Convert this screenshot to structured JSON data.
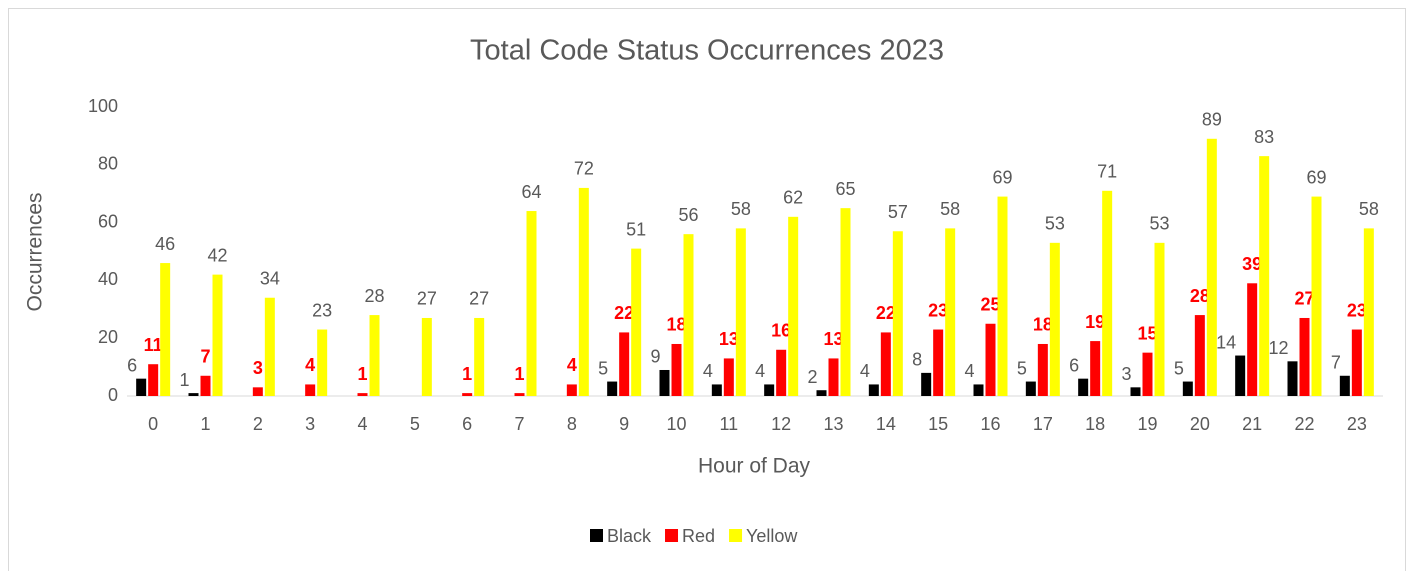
{
  "chart_data": {
    "type": "bar",
    "title": "Total Code Status Occurrences 2023",
    "x_label": "Hour of Day",
    "y_label": "Occurrences",
    "categories": [
      "0",
      "1",
      "2",
      "3",
      "4",
      "5",
      "6",
      "7",
      "8",
      "9",
      "10",
      "11",
      "12",
      "13",
      "14",
      "15",
      "16",
      "17",
      "18",
      "19",
      "20",
      "21",
      "22",
      "23"
    ],
    "series": [
      {
        "name": "Black",
        "color": "#000000",
        "values": [
          6,
          1,
          null,
          null,
          null,
          null,
          null,
          null,
          null,
          5,
          9,
          4,
          4,
          2,
          4,
          8,
          4,
          5,
          6,
          3,
          5,
          14,
          12,
          7
        ]
      },
      {
        "name": "Red",
        "color": "#ff0000",
        "values": [
          11,
          7,
          3,
          4,
          1,
          null,
          1,
          1,
          4,
          22,
          18,
          13,
          16,
          13,
          22,
          23,
          25,
          18,
          19,
          15,
          28,
          39,
          27,
          23
        ]
      },
      {
        "name": "Yellow",
        "color": "#ffff00",
        "values": [
          46,
          42,
          34,
          23,
          28,
          27,
          27,
          64,
          72,
          51,
          56,
          58,
          62,
          65,
          57,
          58,
          69,
          53,
          71,
          53,
          89,
          83,
          69,
          58
        ]
      }
    ],
    "ylim": [
      0,
      100
    ],
    "yticks": [
      0,
      20,
      40,
      60,
      80,
      100
    ],
    "grid": false,
    "legend": "bottom"
  }
}
